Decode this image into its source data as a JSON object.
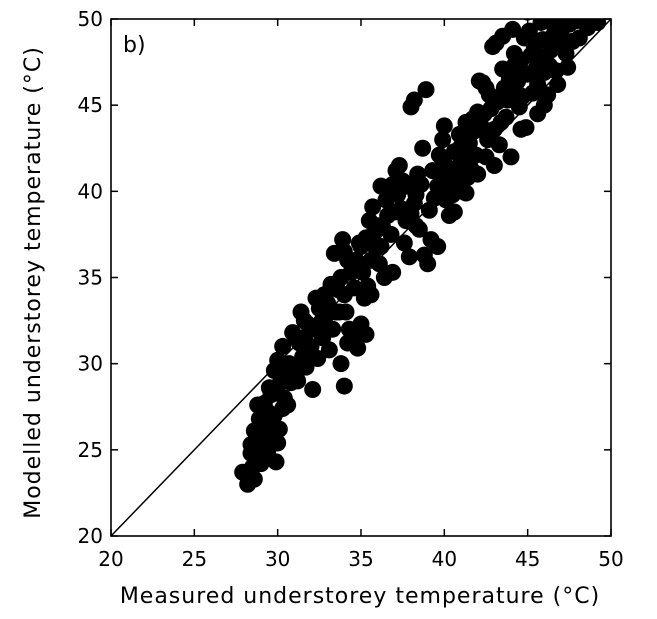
{
  "chart_data": {
    "type": "scatter",
    "panel_label": "b)",
    "xlabel": "Measured understorey temperature (°C)",
    "ylabel": "Modelled understorey temperature (°C)",
    "xlim": [
      20,
      50
    ],
    "ylim": [
      20,
      50
    ],
    "x_ticks": [
      20,
      25,
      30,
      35,
      40,
      45,
      50
    ],
    "y_ticks": [
      20,
      25,
      30,
      35,
      40,
      45,
      50
    ],
    "reference_line": {
      "kind": "1:1",
      "from": [
        20,
        20
      ],
      "to": [
        50,
        50
      ]
    },
    "marker_color": "#000000",
    "points": [
      [
        28.2,
        23.0
      ],
      [
        28.3,
        23.5
      ],
      [
        28.5,
        24.0
      ],
      [
        28.6,
        23.3
      ],
      [
        28.8,
        24.5
      ],
      [
        28.4,
        24.8
      ],
      [
        28.7,
        25.1
      ],
      [
        29.0,
        24.2
      ],
      [
        28.9,
        25.6
      ],
      [
        29.2,
        25.0
      ],
      [
        28.6,
        26.1
      ],
      [
        29.3,
        26.3
      ],
      [
        29.5,
        25.8
      ],
      [
        29.1,
        26.8
      ],
      [
        28.8,
        27.6
      ],
      [
        29.7,
        26.5
      ],
      [
        29.9,
        24.3
      ],
      [
        30.0,
        25.4
      ],
      [
        29.4,
        27.2
      ],
      [
        29.8,
        27.0
      ],
      [
        30.1,
        26.2
      ],
      [
        30.3,
        27.4
      ],
      [
        29.6,
        28.2
      ],
      [
        30.0,
        28.7
      ],
      [
        30.4,
        28.0
      ],
      [
        30.6,
        27.6
      ],
      [
        30.2,
        29.3
      ],
      [
        30.8,
        28.9
      ],
      [
        31.0,
        29.6
      ],
      [
        31.1,
        31.5
      ],
      [
        30.9,
        31.8
      ],
      [
        31.3,
        31.2
      ],
      [
        31.5,
        30.4
      ],
      [
        31.2,
        29.0
      ],
      [
        31.7,
        29.8
      ],
      [
        31.9,
        30.5
      ],
      [
        32.0,
        31.0
      ],
      [
        32.2,
        32.0
      ],
      [
        31.8,
        32.3
      ],
      [
        32.3,
        33.8
      ],
      [
        32.5,
        33.2
      ],
      [
        32.7,
        31.5
      ],
      [
        32.4,
        30.3
      ],
      [
        32.1,
        28.5
      ],
      [
        32.9,
        32.8
      ],
      [
        33.0,
        33.5
      ],
      [
        33.1,
        30.8
      ],
      [
        33.3,
        32.0
      ],
      [
        33.5,
        33.0
      ],
      [
        33.6,
        34.3
      ],
      [
        33.2,
        34.6
      ],
      [
        33.8,
        35.0
      ],
      [
        34.0,
        36.5
      ],
      [
        33.9,
        37.2
      ],
      [
        34.2,
        36.0
      ],
      [
        34.4,
        35.3
      ],
      [
        34.6,
        34.4
      ],
      [
        34.1,
        33.0
      ],
      [
        34.3,
        32.0
      ],
      [
        34.5,
        31.5
      ],
      [
        34.8,
        30.9
      ],
      [
        33.8,
        30.0
      ],
      [
        34.0,
        28.7
      ],
      [
        35.0,
        32.3
      ],
      [
        35.2,
        33.8
      ],
      [
        35.4,
        34.5
      ],
      [
        35.1,
        35.3
      ],
      [
        35.6,
        36.0
      ],
      [
        35.3,
        37.3
      ],
      [
        35.8,
        37.6
      ],
      [
        35.5,
        38.3
      ],
      [
        35.7,
        39.1
      ],
      [
        36.0,
        38.0
      ],
      [
        36.2,
        36.8
      ],
      [
        36.1,
        35.8
      ],
      [
        36.4,
        35.0
      ],
      [
        36.3,
        37.9
      ],
      [
        36.6,
        38.6
      ],
      [
        36.8,
        37.5
      ],
      [
        36.5,
        39.5
      ],
      [
        37.0,
        38.8
      ],
      [
        37.2,
        39.8
      ],
      [
        36.9,
        40.4
      ],
      [
        37.1,
        41.2
      ],
      [
        37.3,
        41.5
      ],
      [
        37.5,
        40.6
      ],
      [
        37.4,
        39.0
      ],
      [
        37.7,
        38.3
      ],
      [
        37.6,
        37.0
      ],
      [
        37.9,
        36.2
      ],
      [
        38.0,
        38.7
      ],
      [
        38.2,
        39.3
      ],
      [
        38.1,
        40.2
      ],
      [
        38.4,
        41.0
      ],
      [
        38.3,
        39.8
      ],
      [
        38.6,
        40.4
      ],
      [
        38.0,
        44.9
      ],
      [
        38.2,
        45.3
      ],
      [
        38.9,
        45.9
      ],
      [
        38.5,
        37.8
      ],
      [
        38.8,
        36.3
      ],
      [
        39.0,
        35.8
      ],
      [
        39.2,
        37.2
      ],
      [
        39.1,
        38.9
      ],
      [
        39.4,
        39.6
      ],
      [
        39.6,
        40.3
      ],
      [
        39.3,
        41.2
      ],
      [
        39.8,
        40.8
      ],
      [
        39.7,
        42.1
      ],
      [
        40.0,
        41.6
      ],
      [
        40.2,
        40.2
      ],
      [
        40.1,
        39.5
      ],
      [
        40.3,
        38.6
      ],
      [
        40.5,
        39.8
      ],
      [
        40.4,
        41.0
      ],
      [
        40.6,
        42.3
      ],
      [
        40.8,
        41.4
      ],
      [
        40.7,
        40.5
      ],
      [
        41.0,
        42.6
      ],
      [
        41.2,
        41.9
      ],
      [
        41.1,
        43.0
      ],
      [
        41.4,
        40.8
      ],
      [
        41.3,
        39.9
      ],
      [
        41.6,
        41.3
      ],
      [
        41.5,
        42.8
      ],
      [
        41.8,
        43.5
      ],
      [
        41.7,
        44.2
      ],
      [
        41.9,
        42.1
      ],
      [
        42.0,
        41.0
      ],
      [
        42.2,
        43.8
      ],
      [
        42.1,
        46.4
      ],
      [
        42.3,
        46.3
      ],
      [
        42.4,
        44.5
      ],
      [
        42.6,
        43.0
      ],
      [
        42.5,
        42.0
      ],
      [
        42.8,
        44.8
      ],
      [
        42.7,
        45.6
      ],
      [
        43.0,
        43.6
      ],
      [
        42.9,
        48.4
      ],
      [
        43.1,
        48.6
      ],
      [
        43.2,
        45.2
      ],
      [
        43.4,
        44.0
      ],
      [
        43.3,
        42.7
      ],
      [
        43.6,
        46.0
      ],
      [
        43.5,
        47.1
      ],
      [
        43.8,
        45.3
      ],
      [
        43.7,
        44.3
      ],
      [
        44.0,
        46.8
      ],
      [
        44.1,
        49.4
      ],
      [
        44.2,
        48.0
      ],
      [
        44.3,
        45.8
      ],
      [
        44.5,
        44.9
      ],
      [
        44.4,
        46.4
      ],
      [
        44.6,
        47.6
      ],
      [
        44.8,
        48.9
      ],
      [
        44.7,
        45.5
      ],
      [
        45.0,
        46.8
      ],
      [
        44.9,
        43.7
      ],
      [
        45.2,
        47.9
      ],
      [
        45.1,
        49.3
      ],
      [
        45.3,
        45.7
      ],
      [
        45.5,
        47.1
      ],
      [
        45.4,
        48.4
      ],
      [
        45.6,
        46.2
      ],
      [
        45.8,
        49.8
      ],
      [
        45.7,
        47.8
      ],
      [
        46.0,
        46.9
      ],
      [
        45.9,
        48.8
      ],
      [
        46.1,
        50.3
      ],
      [
        46.3,
        47.3
      ],
      [
        46.2,
        45.6
      ],
      [
        46.5,
        49.0
      ],
      [
        46.4,
        48.2
      ],
      [
        46.7,
        47.0
      ],
      [
        46.6,
        49.6
      ],
      [
        46.9,
        48.6
      ],
      [
        47.1,
        50.2
      ],
      [
        47.0,
        49.1
      ],
      [
        47.3,
        48.0
      ],
      [
        47.5,
        49.7
      ],
      [
        47.7,
        48.7
      ],
      [
        47.9,
        49.9
      ],
      [
        48.1,
        48.9
      ],
      [
        48.3,
        50.2
      ],
      [
        48.6,
        49.5
      ],
      [
        49.2,
        49.8
      ],
      [
        44.0,
        42.0
      ],
      [
        43.0,
        41.5
      ],
      [
        40.9,
        43.3
      ],
      [
        39.9,
        43.0
      ],
      [
        45.6,
        44.5
      ],
      [
        46.8,
        46.2
      ],
      [
        47.4,
        47.2
      ],
      [
        44.2,
        47.3
      ],
      [
        43.9,
        46.5
      ],
      [
        42.5,
        46.0
      ],
      [
        41.3,
        44.0
      ],
      [
        40.0,
        43.8
      ],
      [
        37.8,
        40.3
      ],
      [
        36.7,
        40.0
      ],
      [
        35.9,
        36.7
      ],
      [
        35.0,
        36.8
      ],
      [
        34.7,
        36.0
      ],
      [
        34.0,
        34.0
      ],
      [
        33.4,
        36.4
      ],
      [
        32.6,
        32.4
      ],
      [
        31.4,
        33.0
      ],
      [
        30.7,
        30.0
      ],
      [
        30.5,
        29.0
      ],
      [
        29.5,
        28.6
      ],
      [
        29.2,
        27.7
      ],
      [
        30.0,
        30.2
      ],
      [
        31.6,
        31.5
      ],
      [
        34.9,
        37.0
      ],
      [
        36.2,
        40.3
      ],
      [
        38.7,
        42.5
      ],
      [
        43.5,
        49.0
      ],
      [
        45.0,
        50.4
      ],
      [
        46.0,
        45.0
      ],
      [
        47.6,
        50.0
      ],
      [
        44.6,
        43.6
      ],
      [
        42.0,
        44.6
      ],
      [
        40.6,
        38.8
      ],
      [
        39.6,
        36.8
      ],
      [
        38.3,
        38.0
      ],
      [
        36.9,
        35.3
      ],
      [
        35.6,
        34.0
      ],
      [
        35.3,
        31.7
      ],
      [
        34.2,
        31.2
      ],
      [
        33.7,
        33.0
      ],
      [
        32.8,
        34.0
      ],
      [
        31.6,
        32.5
      ],
      [
        30.3,
        31.0
      ],
      [
        29.8,
        29.6
      ],
      [
        28.9,
        26.8
      ],
      [
        28.4,
        25.3
      ],
      [
        29.4,
        24.9
      ],
      [
        27.9,
        23.7
      ]
    ]
  }
}
